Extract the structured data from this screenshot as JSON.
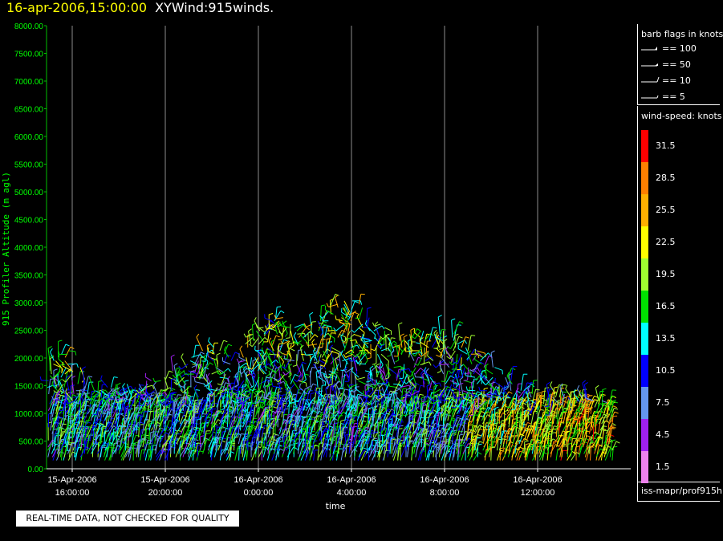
{
  "header": {
    "timestamp": "16-apr-2006,15:00:00",
    "name": "XYWind:915winds."
  },
  "barb_legend": {
    "title": "barb flags in knots",
    "items": [
      {
        "label": "== 100"
      },
      {
        "label": "== 50"
      },
      {
        "label": "== 10"
      },
      {
        "label": "== 5"
      }
    ]
  },
  "colorbar": {
    "title": "wind-speed: knots",
    "entries": [
      {
        "label": "31.5",
        "color": "#ff0000"
      },
      {
        "label": "28.5",
        "color": "#ff8000"
      },
      {
        "label": "25.5",
        "color": "#ffb000"
      },
      {
        "label": "22.5",
        "color": "#ffff00"
      },
      {
        "label": "19.5",
        "color": "#a0ff30"
      },
      {
        "label": "16.5",
        "color": "#00e000"
      },
      {
        "label": "13.5",
        "color": "#00ffff"
      },
      {
        "label": "10.5",
        "color": "#0000ff"
      },
      {
        "label": "7.5",
        "color": "#6496ee"
      },
      {
        "label": "4.5",
        "color": "#a020f0"
      },
      {
        "label": "1.5",
        "color": "#ee82ee"
      }
    ]
  },
  "source_label": "iss-mapr/prof915h",
  "notice": "REAL-TIME DATA, NOT CHECKED FOR QUALITY",
  "chart_data": {
    "type": "scatter",
    "description_kind": "wind barbs",
    "ylabel": "915 Profiler Altitude (m agl)",
    "xlabel": "time",
    "ylim": [
      0,
      8000
    ],
    "yticks": [
      "8000.00",
      "7500.00",
      "7000.00",
      "6500.00",
      "6000.00",
      "5500.00",
      "5000.00",
      "4500.00",
      "4000.00",
      "3500.00",
      "3000.00",
      "2500.00",
      "2000.00",
      "1500.00",
      "1000.00",
      "500.00",
      "0.00"
    ],
    "xticks": [
      {
        "date": "15-Apr-2006",
        "time": "16:00:00"
      },
      {
        "date": "15-Apr-2006",
        "time": "20:00:00"
      },
      {
        "date": "16-Apr-2006",
        "time": "0:00:00"
      },
      {
        "date": "16-Apr-2006",
        "time": "4:00:00"
      },
      {
        "date": "16-Apr-2006",
        "time": "8:00:00"
      },
      {
        "date": "16-Apr-2006",
        "time": "12:00:00"
      }
    ],
    "x_range_hours": [
      15.0,
      39.25
    ],
    "profile_top_m": [
      {
        "hour": 15.0,
        "top": 2050
      },
      {
        "hour": 16.0,
        "top": 2150
      },
      {
        "hour": 17.0,
        "top": 1500
      },
      {
        "hour": 18.0,
        "top": 1550
      },
      {
        "hour": 19.0,
        "top": 1600
      },
      {
        "hour": 20.0,
        "top": 1700
      },
      {
        "hour": 21.0,
        "top": 2000
      },
      {
        "hour": 22.0,
        "top": 2250
      },
      {
        "hour": 23.0,
        "top": 1900
      },
      {
        "hour": 24.0,
        "top": 2700
      },
      {
        "hour": 25.0,
        "top": 2750
      },
      {
        "hour": 26.0,
        "top": 2450
      },
      {
        "hour": 27.0,
        "top": 2950
      },
      {
        "hour": 28.0,
        "top": 3100
      },
      {
        "hour": 29.0,
        "top": 2750
      },
      {
        "hour": 30.0,
        "top": 2400
      },
      {
        "hour": 31.0,
        "top": 2500
      },
      {
        "hour": 32.0,
        "top": 2500
      },
      {
        "hour": 33.0,
        "top": 2300
      },
      {
        "hour": 34.0,
        "top": 1900
      },
      {
        "hour": 35.0,
        "top": 1600
      },
      {
        "hour": 36.0,
        "top": 1300
      },
      {
        "hour": 37.0,
        "top": 1400
      },
      {
        "hour": 38.0,
        "top": 1300
      },
      {
        "hour": 39.25,
        "top": 1200
      }
    ]
  }
}
